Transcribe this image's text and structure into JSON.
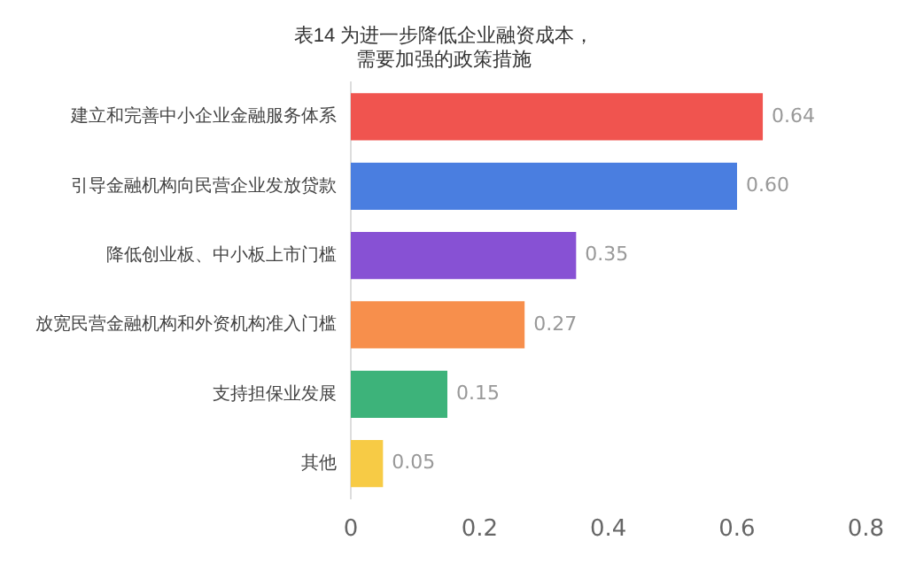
{
  "chart_data": {
    "type": "bar",
    "orientation": "horizontal",
    "title": "表14 为进一步降低企业融资成本，需要加强的政策措施",
    "categories": [
      "建立和完善中小企业金融服务体系",
      "引导金融机构向民营企业发放贷款",
      "降低创业板、中小板上市门槛",
      "放宽民营金融机构和外资机构准入门槛",
      "支持担保业发展",
      "其他"
    ],
    "values": [
      0.64,
      0.6,
      0.35,
      0.27,
      0.15,
      0.05
    ],
    "colors": [
      "#f0544f",
      "#4a7ee0",
      "#8751d4",
      "#f78f4c",
      "#3db37a",
      "#f7cb45"
    ],
    "value_labels": [
      "0.64",
      "0.60",
      "0.35",
      "0.27",
      "0.15",
      "0.05"
    ],
    "xlim": [
      0,
      0.8
    ],
    "xticks": [
      0,
      0.2,
      0.4,
      0.6,
      0.8
    ],
    "grid": false
  }
}
